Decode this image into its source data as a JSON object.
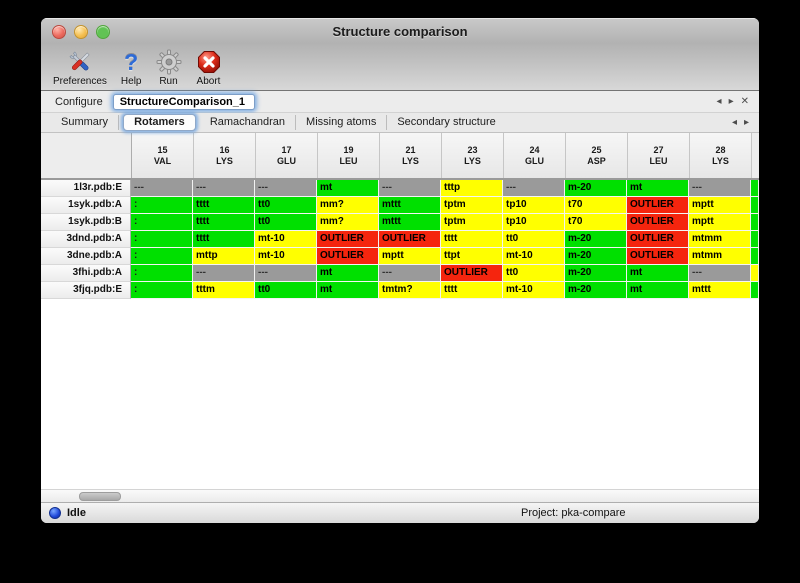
{
  "window": {
    "title": "Structure comparison"
  },
  "toolbar": {
    "items": [
      {
        "label": "Preferences",
        "icon": "tools-icon"
      },
      {
        "label": "Help",
        "icon": "question-mark-icon"
      },
      {
        "label": "Run",
        "icon": "gear-icon"
      },
      {
        "label": "Abort",
        "icon": "stop-x-icon"
      }
    ]
  },
  "configure": {
    "label": "Configure",
    "value": "StructureComparison_1"
  },
  "panel_nav": {
    "prev": "◂",
    "next": "▸",
    "close": "✕"
  },
  "tabs": {
    "items": [
      "Summary",
      "Rotamers",
      "Ramachandran",
      "Missing atoms",
      "Secondary structure"
    ],
    "selected": "Rotamers",
    "prev": "◂",
    "next": "▸"
  },
  "table": {
    "clip_mark": ":",
    "columns": [
      {
        "num": "15",
        "res": "VAL"
      },
      {
        "num": "16",
        "res": "LYS"
      },
      {
        "num": "17",
        "res": "GLU"
      },
      {
        "num": "19",
        "res": "LEU"
      },
      {
        "num": "21",
        "res": "LYS"
      },
      {
        "num": "23",
        "res": "LYS"
      },
      {
        "num": "24",
        "res": "GLU"
      },
      {
        "num": "25",
        "res": "ASP"
      },
      {
        "num": "27",
        "res": "LEU"
      },
      {
        "num": "28",
        "res": "LYS"
      }
    ],
    "rows": [
      {
        "label": "1l3r.pdb:E",
        "sliver": "green",
        "cells": [
          {
            "t": "---",
            "c": "gray"
          },
          {
            "t": "---",
            "c": "gray"
          },
          {
            "t": "---",
            "c": "gray"
          },
          {
            "t": "mt",
            "c": "green"
          },
          {
            "t": "---",
            "c": "gray"
          },
          {
            "t": "tttp",
            "c": "yellow"
          },
          {
            "t": "---",
            "c": "gray"
          },
          {
            "t": "m-20",
            "c": "green"
          },
          {
            "t": "mt",
            "c": "green"
          },
          {
            "t": "---",
            "c": "gray"
          }
        ]
      },
      {
        "label": "1syk.pdb:A",
        "sliver": "green",
        "cells": [
          {
            "t": "",
            "c": "green",
            "clip": true
          },
          {
            "t": "tttt",
            "c": "green"
          },
          {
            "t": "tt0",
            "c": "green"
          },
          {
            "t": "mm?",
            "c": "yellow"
          },
          {
            "t": "mttt",
            "c": "green"
          },
          {
            "t": "tptm",
            "c": "yellow"
          },
          {
            "t": "tp10",
            "c": "yellow"
          },
          {
            "t": "t70",
            "c": "yellow"
          },
          {
            "t": "OUTLIER",
            "c": "red"
          },
          {
            "t": "mptt",
            "c": "yellow"
          }
        ]
      },
      {
        "label": "1syk.pdb:B",
        "sliver": "green",
        "cells": [
          {
            "t": "",
            "c": "green",
            "clip": true
          },
          {
            "t": "tttt",
            "c": "green"
          },
          {
            "t": "tt0",
            "c": "green"
          },
          {
            "t": "mm?",
            "c": "yellow"
          },
          {
            "t": "mttt",
            "c": "green"
          },
          {
            "t": "tptm",
            "c": "yellow"
          },
          {
            "t": "tp10",
            "c": "yellow"
          },
          {
            "t": "t70",
            "c": "yellow"
          },
          {
            "t": "OUTLIER",
            "c": "red"
          },
          {
            "t": "mptt",
            "c": "yellow"
          }
        ]
      },
      {
        "label": "3dnd.pdb:A",
        "sliver": "green",
        "cells": [
          {
            "t": "",
            "c": "green",
            "clip": true
          },
          {
            "t": "tttt",
            "c": "green"
          },
          {
            "t": "mt-10",
            "c": "yellow"
          },
          {
            "t": "OUTLIER",
            "c": "red"
          },
          {
            "t": "OUTLIER",
            "c": "red"
          },
          {
            "t": "tttt",
            "c": "yellow"
          },
          {
            "t": "tt0",
            "c": "yellow"
          },
          {
            "t": "m-20",
            "c": "green"
          },
          {
            "t": "OUTLIER",
            "c": "red"
          },
          {
            "t": "mtmm",
            "c": "yellow"
          }
        ]
      },
      {
        "label": "3dne.pdb:A",
        "sliver": "green",
        "cells": [
          {
            "t": "",
            "c": "green",
            "clip": true
          },
          {
            "t": "mttp",
            "c": "yellow"
          },
          {
            "t": "mt-10",
            "c": "yellow"
          },
          {
            "t": "OUTLIER",
            "c": "red"
          },
          {
            "t": "mptt",
            "c": "yellow"
          },
          {
            "t": "ttpt",
            "c": "yellow"
          },
          {
            "t": "mt-10",
            "c": "yellow"
          },
          {
            "t": "m-20",
            "c": "green"
          },
          {
            "t": "OUTLIER",
            "c": "red"
          },
          {
            "t": "mtmm",
            "c": "yellow"
          }
        ]
      },
      {
        "label": "3fhi.pdb:A",
        "sliver": "yellow",
        "cells": [
          {
            "t": "",
            "c": "green",
            "clip": true
          },
          {
            "t": "---",
            "c": "gray"
          },
          {
            "t": "---",
            "c": "gray"
          },
          {
            "t": "mt",
            "c": "green"
          },
          {
            "t": "---",
            "c": "gray"
          },
          {
            "t": "OUTLIER",
            "c": "red"
          },
          {
            "t": "tt0",
            "c": "yellow"
          },
          {
            "t": "m-20",
            "c": "green"
          },
          {
            "t": "mt",
            "c": "green"
          },
          {
            "t": "---",
            "c": "gray"
          }
        ]
      },
      {
        "label": "3fjq.pdb:E",
        "sliver": "green",
        "cells": [
          {
            "t": "",
            "c": "green",
            "clip": true
          },
          {
            "t": "tttm",
            "c": "yellow"
          },
          {
            "t": "tt0",
            "c": "green"
          },
          {
            "t": "mt",
            "c": "green"
          },
          {
            "t": "tmtm?",
            "c": "yellow"
          },
          {
            "t": "tttt",
            "c": "yellow"
          },
          {
            "t": "mt-10",
            "c": "yellow"
          },
          {
            "t": "m-20",
            "c": "green"
          },
          {
            "t": "mt",
            "c": "green"
          },
          {
            "t": "mttt",
            "c": "yellow"
          }
        ]
      }
    ]
  },
  "status": {
    "state": "Idle",
    "project": "Project: pka-compare"
  },
  "colors": {
    "green": "#00e000",
    "yellow": "#ffff00",
    "red": "#f5250e",
    "gray": "#9a9a9a"
  }
}
